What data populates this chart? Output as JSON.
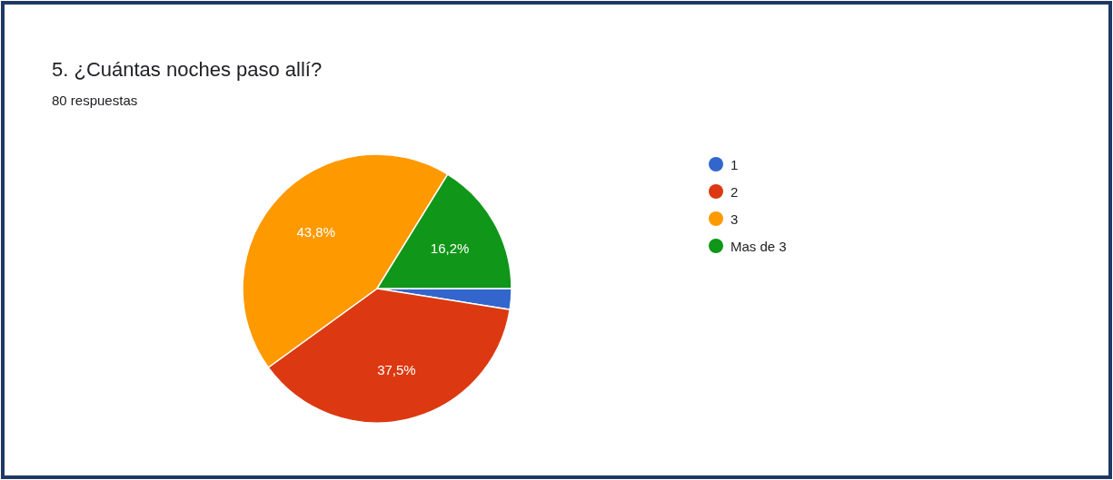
{
  "chart_data": {
    "type": "pie",
    "title": "5. ¿Cuántas noches paso allí?",
    "subtitle": "80 respuestas",
    "categories": [
      "1",
      "2",
      "3",
      "Mas de 3"
    ],
    "values": [
      2.5,
      37.5,
      43.8,
      16.2
    ],
    "colors": [
      "#3366cc",
      "#dc3912",
      "#ff9900",
      "#109618"
    ],
    "value_labels": [
      null,
      "37,5%",
      "43,8%",
      "16,2%"
    ],
    "legend": "right"
  }
}
